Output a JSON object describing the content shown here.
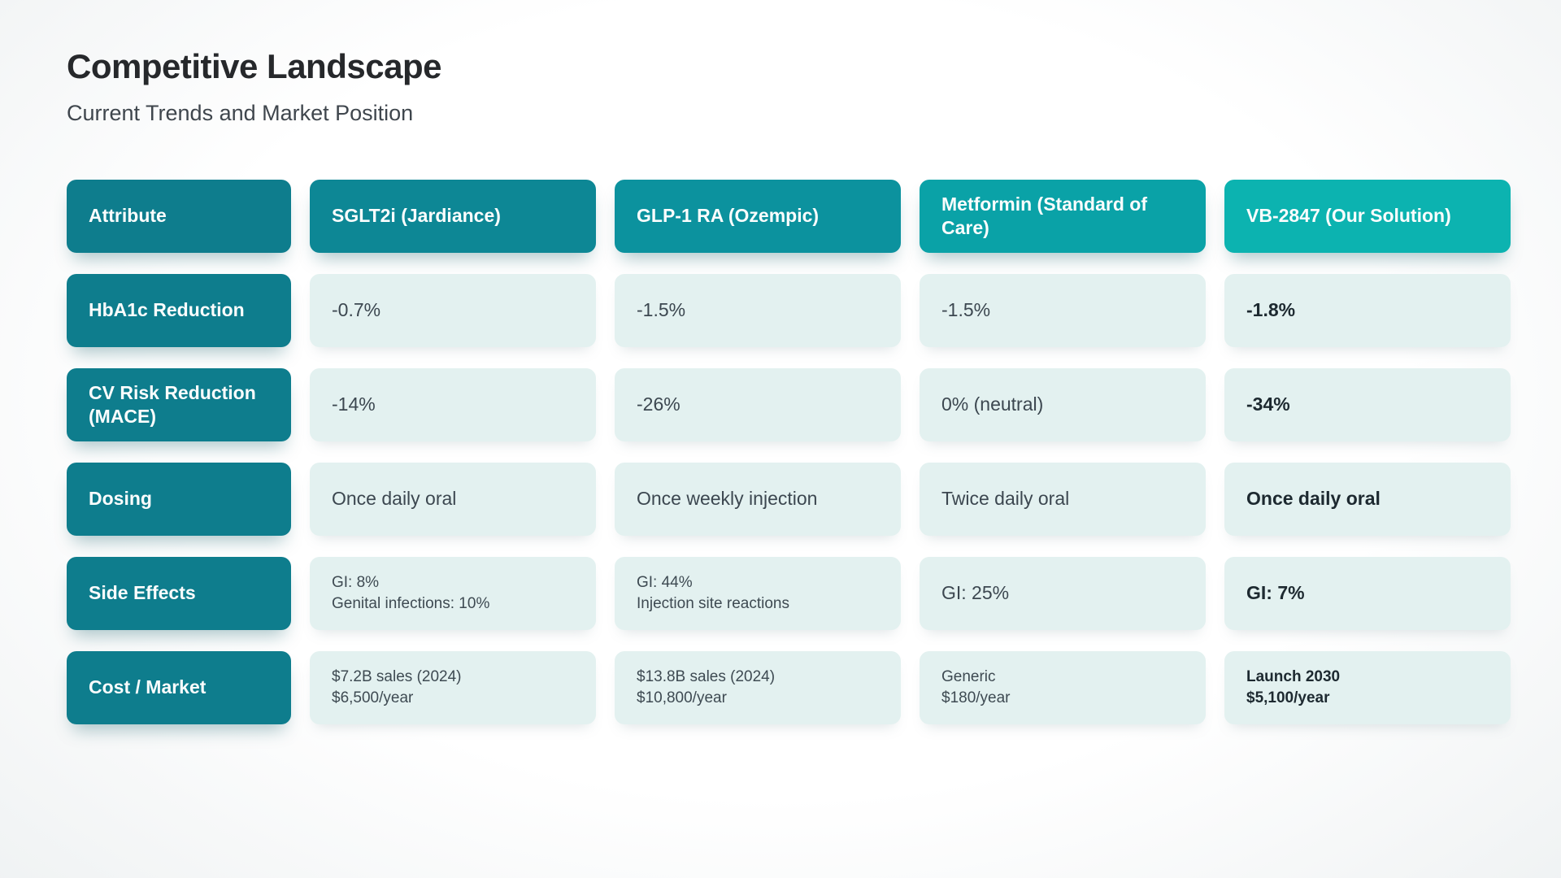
{
  "page": {
    "title": "Competitive Landscape",
    "subtitle": "Current Trends and Market Position"
  },
  "colors": {
    "row_label_bg": "#0e7d8d",
    "value_cell_bg": "#e3f1f0",
    "header_bgs": [
      "#0e7d8d",
      "#0d8795",
      "#0c929e",
      "#0aa2a7",
      "#0cb3b0"
    ],
    "header_text": "#fbfdfd",
    "value_text": "#3c4750",
    "emphasis_text": "#1d2930"
  },
  "table": {
    "headers": [
      {
        "label": "Attribute"
      },
      {
        "label": "SGLT2i (Jardiance)"
      },
      {
        "label": "GLP-1 RA (Ozempic)"
      },
      {
        "label": "Metformin (Standard of Care)"
      },
      {
        "label": "VB-2847 (Our Solution)"
      }
    ],
    "rows": [
      {
        "attribute": "HbA1c Reduction",
        "cells": [
          {
            "lines": [
              "-0.7%"
            ],
            "bold": false
          },
          {
            "lines": [
              "-1.5%"
            ],
            "bold": false
          },
          {
            "lines": [
              "-1.5%"
            ],
            "bold": false
          },
          {
            "lines": [
              "-1.8%"
            ],
            "bold": true
          }
        ]
      },
      {
        "attribute": "CV Risk Reduction (MACE)",
        "cells": [
          {
            "lines": [
              "-14%"
            ],
            "bold": false
          },
          {
            "lines": [
              "-26%"
            ],
            "bold": false
          },
          {
            "lines": [
              "0% (neutral)"
            ],
            "bold": false
          },
          {
            "lines": [
              "-34%"
            ],
            "bold": true
          }
        ]
      },
      {
        "attribute": "Dosing",
        "cells": [
          {
            "lines": [
              "Once daily oral"
            ],
            "bold": false
          },
          {
            "lines": [
              "Once weekly injection"
            ],
            "bold": false
          },
          {
            "lines": [
              "Twice daily oral"
            ],
            "bold": false
          },
          {
            "lines": [
              "Once daily oral"
            ],
            "bold": true
          }
        ]
      },
      {
        "attribute": "Side Effects",
        "cells": [
          {
            "lines": [
              "GI: 8%",
              "Genital infections: 10%"
            ],
            "bold": false
          },
          {
            "lines": [
              "GI: 44%",
              "Injection site reactions"
            ],
            "bold": false
          },
          {
            "lines": [
              "GI: 25%"
            ],
            "bold": false
          },
          {
            "lines": [
              "GI: 7%"
            ],
            "bold": true
          }
        ]
      },
      {
        "attribute": "Cost / Market",
        "cells": [
          {
            "lines": [
              "$7.2B sales (2024)",
              "$6,500/year"
            ],
            "bold": false
          },
          {
            "lines": [
              "$13.8B sales (2024)",
              "$10,800/year"
            ],
            "bold": false
          },
          {
            "lines": [
              "Generic",
              "$180/year"
            ],
            "bold": false
          },
          {
            "lines": [
              "Launch 2030",
              "$5,100/year"
            ],
            "bold": true
          }
        ]
      }
    ]
  }
}
